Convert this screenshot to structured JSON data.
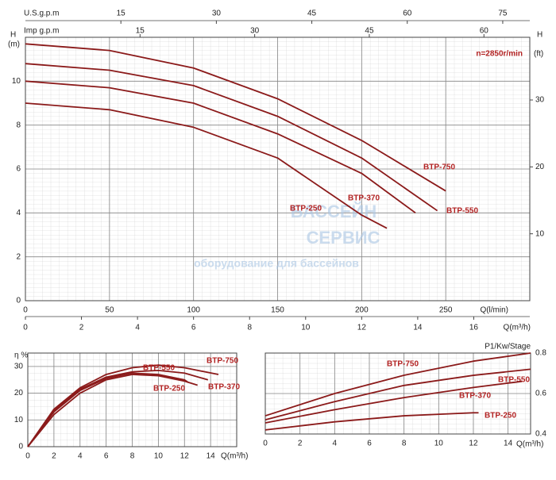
{
  "chart_data": [
    {
      "type": "line",
      "title_annotation": "n=2850r/min",
      "watermark": [
        "БАССЕЙН",
        "СЕРВИС",
        "оборудование для бассейнов"
      ],
      "xlabel": "Q(l/min)",
      "x2label": "Q(m³/h)",
      "x3label": "U.S.g.p.m",
      "x4label": "Imp g.p.m",
      "ylabel": "H",
      "ylabel_unit": "(m)",
      "y2label": "H",
      "y2label_unit": "(ft)",
      "xlim": [
        0,
        300
      ],
      "xticks": [
        0,
        50,
        100,
        150,
        200,
        250
      ],
      "x2lim": [
        0,
        18
      ],
      "x2ticks": [
        0,
        2,
        4,
        6,
        8,
        10,
        12,
        14,
        16
      ],
      "x3lim": [
        0,
        79.25
      ],
      "x3ticks": [
        15,
        30,
        45,
        60,
        75
      ],
      "x4lim": [
        0,
        66
      ],
      "x4ticks": [
        15,
        30,
        45,
        60
      ],
      "ylim": [
        0,
        12
      ],
      "yticks": [
        0,
        2,
        4,
        6,
        8,
        10
      ],
      "y2lim": [
        0,
        39.37
      ],
      "y2ticks": [
        10,
        20,
        30
      ],
      "grid": true,
      "series": [
        {
          "name": "BTP-750",
          "color": "#8b1a1a",
          "x": [
            0,
            50,
            100,
            150,
            200,
            250
          ],
          "values": [
            11.7,
            11.4,
            10.6,
            9.2,
            7.3,
            5.0
          ]
        },
        {
          "name": "BTP-550",
          "color": "#8b1a1a",
          "x": [
            0,
            50,
            100,
            150,
            200,
            245
          ],
          "values": [
            10.8,
            10.5,
            9.8,
            8.4,
            6.5,
            4.1
          ]
        },
        {
          "name": "BTP-370",
          "color": "#8b1a1a",
          "x": [
            0,
            50,
            100,
            150,
            200,
            232
          ],
          "values": [
            10.0,
            9.7,
            9.0,
            7.6,
            5.8,
            4.0
          ]
        },
        {
          "name": "BTP-250",
          "color": "#8b1a1a",
          "x": [
            0,
            50,
            100,
            150,
            200,
            215
          ],
          "values": [
            9.0,
            8.7,
            7.9,
            6.5,
            3.9,
            3.3
          ]
        }
      ]
    },
    {
      "type": "line",
      "xlabel": "Q(m³/h)",
      "ylabel": "η %",
      "xlim": [
        0,
        16
      ],
      "xticks": [
        0,
        2,
        4,
        6,
        8,
        10,
        12,
        14
      ],
      "ylim": [
        0,
        35
      ],
      "yticks": [
        0,
        10,
        20,
        30
      ],
      "grid": true,
      "series": [
        {
          "name": "BTP-750",
          "color": "#8b1a1a",
          "x": [
            0,
            2,
            4,
            6,
            8,
            10,
            12,
            14.6
          ],
          "values": [
            0,
            14,
            22,
            27,
            29.5,
            30.5,
            29.5,
            27
          ]
        },
        {
          "name": "BTP-550",
          "color": "#8b1a1a",
          "x": [
            0,
            2,
            4,
            6,
            8,
            10,
            12,
            13.8
          ],
          "values": [
            0,
            13.5,
            21.5,
            26,
            28,
            28.5,
            27.5,
            25
          ]
        },
        {
          "name": "BTP-370",
          "color": "#8b1a1a",
          "x": [
            0,
            2,
            4,
            6,
            8,
            10,
            12,
            13
          ],
          "values": [
            0,
            12,
            20,
            25,
            27,
            26.5,
            24.5,
            23
          ]
        },
        {
          "name": "BTP-250",
          "color": "#8b1a1a",
          "x": [
            0,
            2,
            4,
            6,
            8,
            10,
            12,
            12.3
          ],
          "values": [
            0,
            13,
            21,
            25.5,
            27.5,
            27,
            25,
            24
          ]
        }
      ]
    },
    {
      "type": "line",
      "xlabel": "Q(m³/h)",
      "ylabel": "P1/Kw/Stage",
      "y_axis_side": "right",
      "xlim": [
        0,
        15.3
      ],
      "xticks": [
        0,
        2,
        4,
        6,
        8,
        10,
        12,
        14
      ],
      "ylim": [
        0.4,
        0.8
      ],
      "yticks": [
        0.4,
        0.6,
        0.8
      ],
      "grid": true,
      "series": [
        {
          "name": "BTP-750",
          "color": "#8b1a1a",
          "x": [
            0,
            4,
            8,
            12,
            15.3
          ],
          "values": [
            0.49,
            0.6,
            0.69,
            0.76,
            0.8
          ]
        },
        {
          "name": "BTP-550",
          "color": "#8b1a1a",
          "x": [
            0,
            4,
            8,
            12,
            15.3
          ],
          "values": [
            0.47,
            0.56,
            0.64,
            0.69,
            0.72
          ]
        },
        {
          "name": "BTP-370",
          "color": "#8b1a1a",
          "x": [
            0,
            4,
            8,
            12,
            14.8
          ],
          "values": [
            0.455,
            0.52,
            0.58,
            0.63,
            0.66
          ]
        },
        {
          "name": "BTP-250",
          "color": "#8b1a1a",
          "x": [
            0,
            4,
            8,
            12,
            12.3
          ],
          "values": [
            0.42,
            0.46,
            0.49,
            0.505,
            0.505
          ]
        }
      ]
    }
  ]
}
